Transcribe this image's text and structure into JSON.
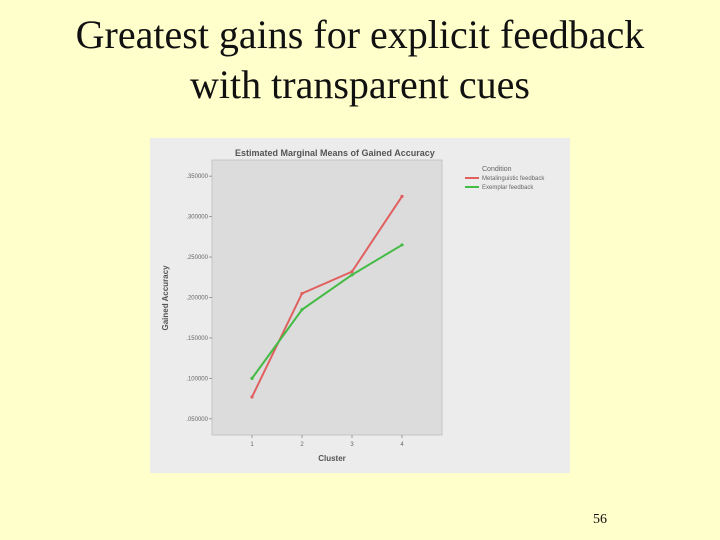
{
  "slide": {
    "title_line1": "Greatest gains for explicit feedback",
    "title_line2": "with transparent cues",
    "page_number": "56",
    "background_color": "#ffffcc"
  },
  "chart_data": {
    "type": "line",
    "title": "Estimated Marginal Means of Gained Accuracy",
    "xlabel": "Cluster",
    "ylabel": "Gained Accuracy",
    "categories": [
      "1",
      "2",
      "3",
      "4"
    ],
    "ylim": [
      0.03,
      0.37
    ],
    "yticks": [
      0.05,
      0.1,
      0.15,
      0.2,
      0.25,
      0.3,
      0.35
    ],
    "ytick_labels": [
      ".050000",
      ".100000",
      ".150000",
      ".200000",
      ".250000",
      ".300000",
      ".350000"
    ],
    "grid": false,
    "legend_title": "Condition",
    "legend_position": "top-right",
    "series": [
      {
        "name": "Metalinguistic feedback",
        "color": "#e06060",
        "values": [
          0.077,
          0.205,
          0.232,
          0.325
        ]
      },
      {
        "name": "Exemplar feedback",
        "color": "#44bb44",
        "values": [
          0.1,
          0.185,
          0.228,
          0.265
        ]
      }
    ]
  }
}
